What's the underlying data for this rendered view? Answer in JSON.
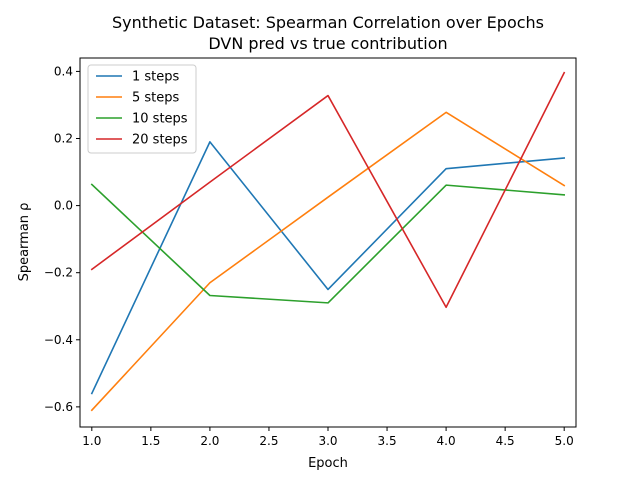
{
  "chart_data": {
    "type": "line",
    "title": "Synthetic Dataset: Spearman Correlation over Epochs",
    "subtitle": "DVN pred vs true contribution",
    "xlabel": "Epoch",
    "ylabel": "Spearman ρ",
    "xlim": [
      0.9,
      5.1
    ],
    "ylim": [
      -0.66,
      0.44
    ],
    "x_ticks": [
      1.0,
      1.5,
      2.0,
      2.5,
      3.0,
      3.5,
      4.0,
      4.5,
      5.0
    ],
    "x_tick_labels": [
      "1.0",
      "1.5",
      "2.0",
      "2.5",
      "3.0",
      "3.5",
      "4.0",
      "4.5",
      "5.0"
    ],
    "y_ticks": [
      -0.6,
      -0.4,
      -0.2,
      0.0,
      0.2,
      0.4
    ],
    "y_tick_labels": [
      "−0.6",
      "−0.4",
      "−0.2",
      "0.0",
      "0.2",
      "0.4"
    ],
    "grid": false,
    "legend_position": "top-left",
    "x": [
      1,
      2,
      3,
      4,
      5
    ],
    "series": [
      {
        "name": "1 steps",
        "color": "#1f77b4",
        "values": [
          -0.56,
          0.19,
          -0.25,
          0.11,
          0.142
        ]
      },
      {
        "name": "5 steps",
        "color": "#ff7f0e",
        "values": [
          -0.61,
          -0.23,
          0.025,
          0.278,
          0.06
        ]
      },
      {
        "name": "10 steps",
        "color": "#2ca02c",
        "values": [
          0.063,
          -0.268,
          -0.29,
          0.061,
          0.032
        ]
      },
      {
        "name": "20 steps",
        "color": "#d62728",
        "values": [
          -0.19,
          0.07,
          0.328,
          -0.303,
          0.396
        ]
      }
    ]
  }
}
